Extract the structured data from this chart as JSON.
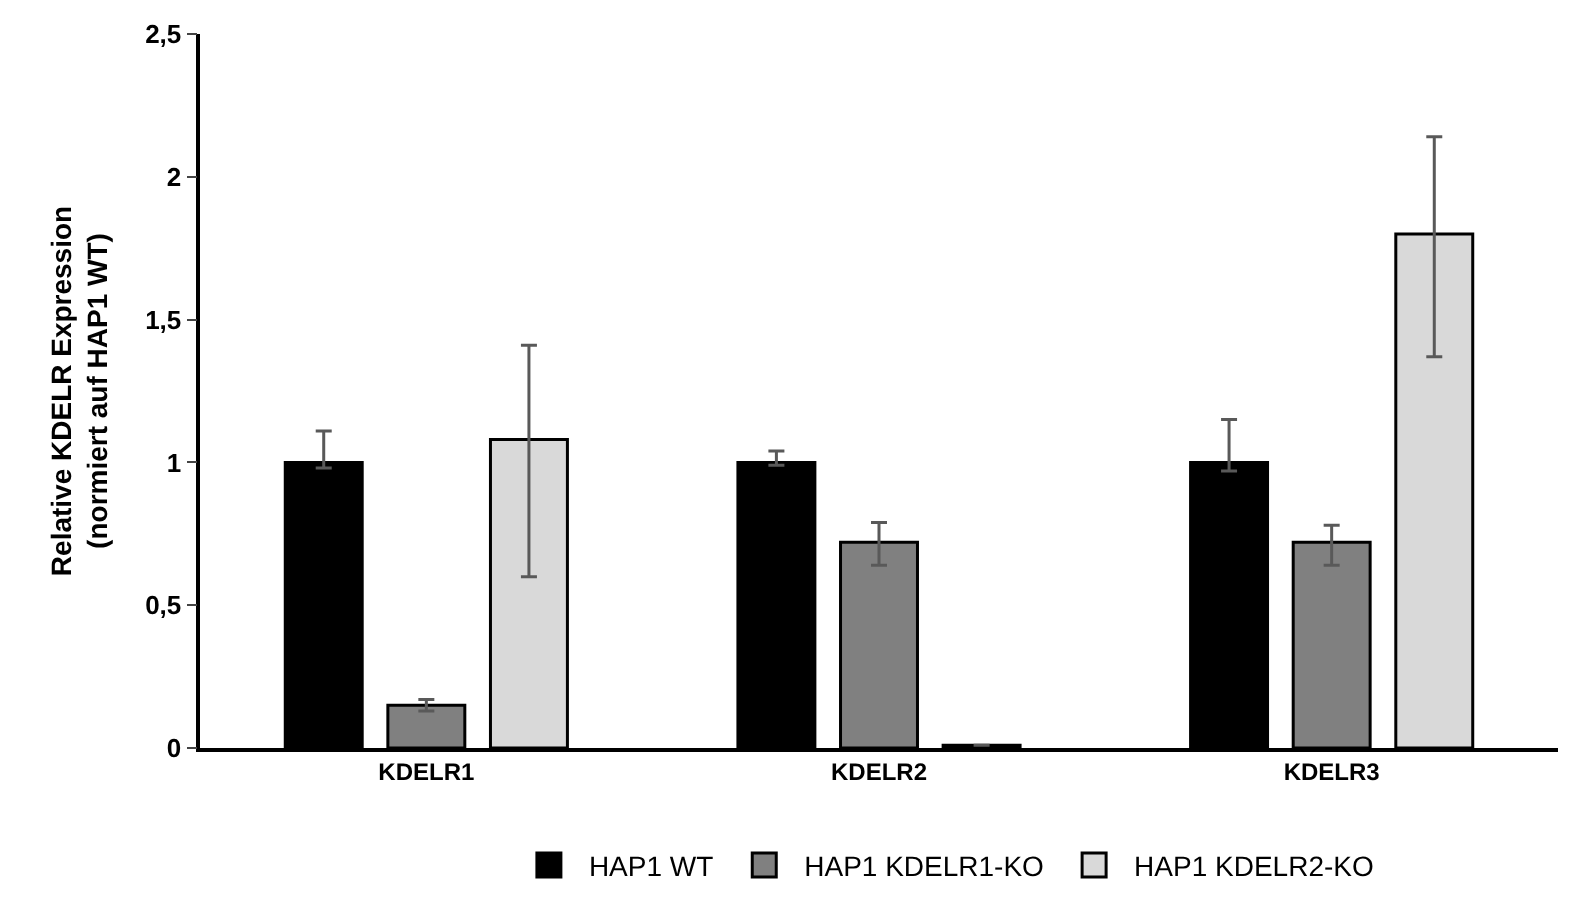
{
  "chart_data": {
    "type": "bar",
    "ylabel": "Relative KDELR Expression\n(normiert auf HAP1 WT)",
    "categories": [
      "KDELR1",
      "KDELR2",
      "KDELR3"
    ],
    "series": [
      {
        "name": "HAP1 WT",
        "color": "#000000",
        "values": [
          1.0,
          1.0,
          1.0
        ],
        "errors": [
          [
            0.98,
            1.11
          ],
          [
            0.99,
            1.04
          ],
          [
            0.97,
            1.15
          ]
        ]
      },
      {
        "name": "HAP1 KDELR1-KO",
        "color": "#808080",
        "values": [
          0.15,
          0.72,
          0.72
        ],
        "errors": [
          [
            0.13,
            0.17
          ],
          [
            0.64,
            0.79
          ],
          [
            0.64,
            0.78
          ]
        ]
      },
      {
        "name": "HAP1 KDELR2-KO",
        "color": "#d9d9d9",
        "values": [
          1.08,
          0.01,
          1.8
        ],
        "errors": [
          [
            0.6,
            1.41
          ],
          null,
          [
            1.37,
            2.14
          ]
        ]
      }
    ],
    "ylim": [
      0,
      2.5
    ],
    "yticks": [
      {
        "value": 0,
        "label": "0"
      },
      {
        "value": 0.5,
        "label": "0,5"
      },
      {
        "value": 1,
        "label": "1"
      },
      {
        "value": 1.5,
        "label": "1,5"
      },
      {
        "value": 2,
        "label": "2"
      },
      {
        "value": 2.5,
        "label": "2,5"
      }
    ],
    "legend": "bottom"
  }
}
